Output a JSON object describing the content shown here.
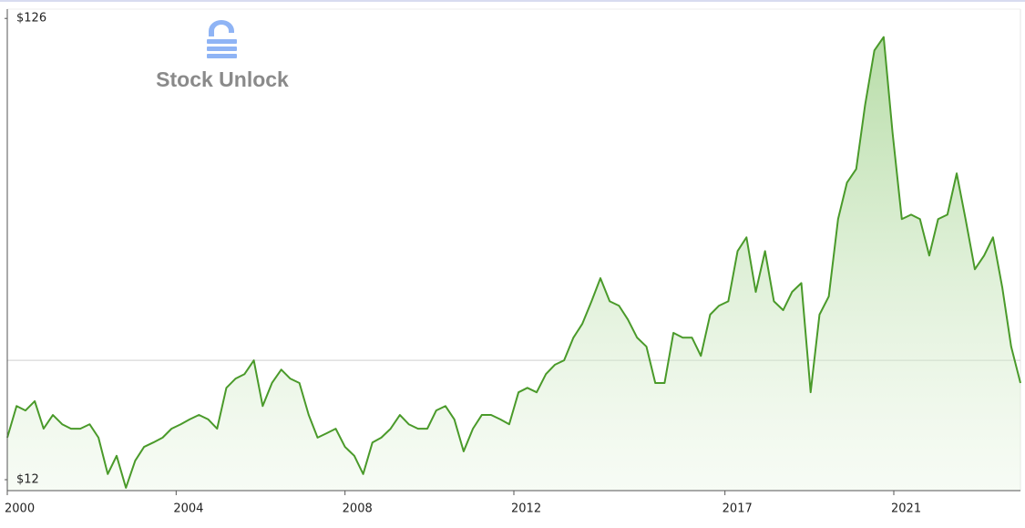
{
  "chart_data": {
    "type": "area",
    "watermark": "Stock Unlock",
    "color": "#4a9a2a",
    "xlim": [
      2000,
      2024
    ],
    "xticks": [
      2000,
      2004,
      2008,
      2012,
      2017,
      2021
    ],
    "ylim": [
      9.3,
      128.3
    ],
    "yticks": [
      {
        "value": 12,
        "label": "$12"
      },
      {
        "value": 126,
        "label": "$126"
      }
    ],
    "reference_line": 41.5,
    "x": [
      2000.0,
      2000.22,
      2000.43,
      2000.65,
      2000.86,
      2001.08,
      2001.3,
      2001.51,
      2001.73,
      2001.95,
      2002.16,
      2002.38,
      2002.59,
      2002.81,
      2003.03,
      2003.24,
      2003.46,
      2003.68,
      2003.89,
      2004.11,
      2004.32,
      2004.54,
      2004.76,
      2004.97,
      2005.19,
      2005.41,
      2005.62,
      2005.84,
      2006.05,
      2006.27,
      2006.49,
      2006.7,
      2006.92,
      2007.14,
      2007.35,
      2007.57,
      2007.78,
      2008.0,
      2008.22,
      2008.43,
      2008.65,
      2008.86,
      2009.08,
      2009.3,
      2009.51,
      2009.73,
      2009.95,
      2010.16,
      2010.38,
      2010.59,
      2010.81,
      2011.03,
      2011.24,
      2011.46,
      2011.68,
      2011.89,
      2012.11,
      2012.32,
      2012.54,
      2012.76,
      2012.97,
      2013.19,
      2013.41,
      2013.62,
      2013.84,
      2014.05,
      2014.27,
      2014.49,
      2014.7,
      2014.92,
      2015.14,
      2015.35,
      2015.57,
      2015.78,
      2016.0,
      2016.22,
      2016.43,
      2016.65,
      2016.86,
      2017.08,
      2017.3,
      2017.51,
      2017.73,
      2017.95,
      2018.16,
      2018.38,
      2018.59,
      2018.81,
      2019.03,
      2019.24,
      2019.46,
      2019.68,
      2019.89,
      2020.11,
      2020.32,
      2020.54,
      2020.76,
      2020.97,
      2021.19,
      2021.41,
      2021.62,
      2021.84,
      2022.05,
      2022.27,
      2022.49,
      2022.7,
      2022.92,
      2023.14,
      2023.35,
      2023.57,
      2023.78,
      2024.0
    ],
    "values": [
      22.4,
      30.2,
      29.1,
      31.4,
      24.6,
      28.0,
      25.7,
      24.6,
      24.6,
      25.7,
      22.4,
      13.4,
      17.9,
      10.0,
      16.7,
      20.1,
      21.2,
      22.4,
      24.6,
      25.7,
      26.9,
      28.0,
      26.9,
      24.6,
      34.7,
      37.0,
      38.1,
      41.5,
      30.2,
      35.9,
      39.2,
      37.0,
      35.9,
      28.0,
      22.4,
      23.5,
      24.6,
      20.1,
      17.9,
      13.4,
      21.2,
      22.4,
      24.6,
      28.0,
      25.7,
      24.6,
      24.6,
      29.1,
      30.2,
      26.9,
      19.0,
      24.6,
      28.0,
      28.0,
      26.9,
      25.7,
      33.6,
      34.7,
      33.6,
      38.1,
      40.4,
      41.5,
      47.1,
      50.5,
      56.1,
      61.8,
      56.1,
      55.0,
      51.6,
      47.1,
      44.9,
      35.9,
      35.9,
      48.3,
      47.1,
      47.1,
      42.6,
      52.8,
      55.0,
      56.1,
      68.5,
      71.9,
      58.4,
      68.5,
      56.1,
      53.9,
      58.4,
      60.6,
      33.6,
      52.8,
      57.3,
      76.4,
      85.4,
      88.8,
      104.6,
      118.1,
      121.4,
      97.8,
      76.4,
      77.5,
      76.4,
      67.4,
      76.4,
      77.5,
      87.7,
      76.4,
      64.0,
      67.4,
      71.9,
      59.5,
      44.9,
      35.9
    ]
  }
}
